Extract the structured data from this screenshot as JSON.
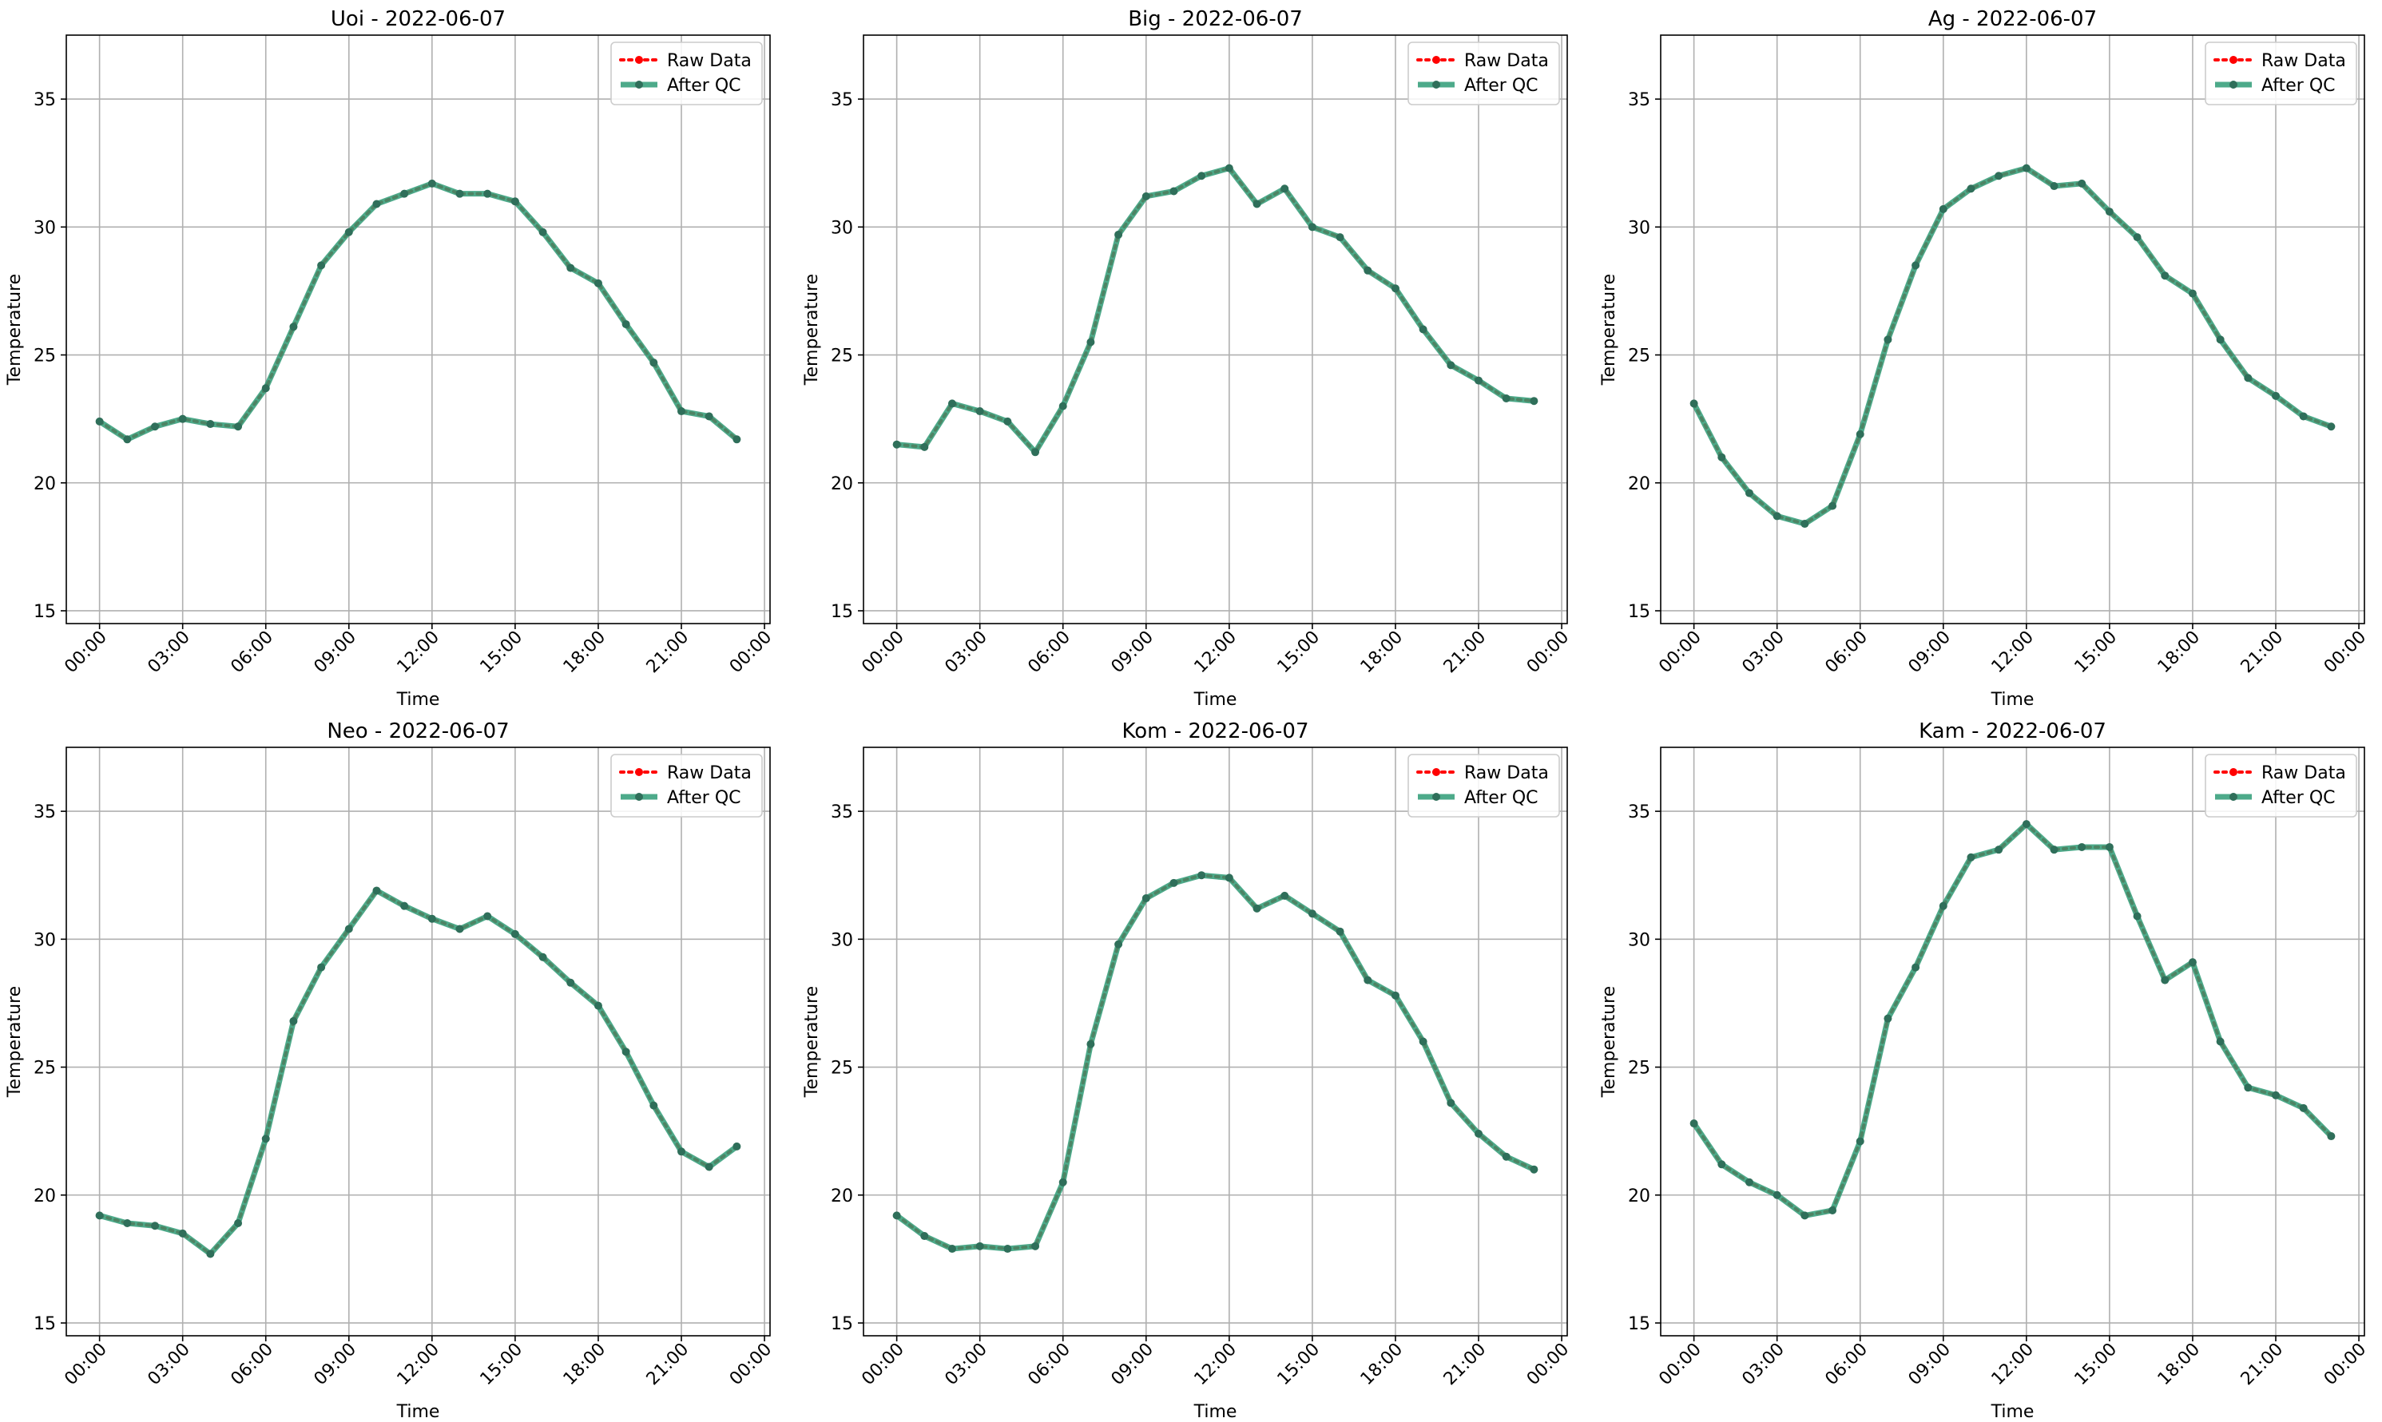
{
  "figure": {
    "x_ticks": [
      "00:00",
      "03:00",
      "06:00",
      "09:00",
      "12:00",
      "15:00",
      "18:00",
      "21:00",
      "00:00"
    ]
  },
  "colors": {
    "raw": "#ff0000",
    "qc": "#2e9b76",
    "qc_marker": "#2f6f5a",
    "grid": "#b0b0b0"
  },
  "chart_data": [
    {
      "type": "line",
      "title": "Uoi - 2022-06-07",
      "xlabel": "Time",
      "ylabel": "Temperature",
      "ylim": [
        14.5,
        37.5
      ],
      "y_ticks": [
        15,
        20,
        25,
        30,
        35
      ],
      "xlim_hours": [
        -1.2,
        24.2
      ],
      "grid": true,
      "legend_position": "upper right",
      "x": [
        "00:00",
        "01:00",
        "02:00",
        "03:00",
        "04:00",
        "05:00",
        "06:00",
        "07:00",
        "08:00",
        "09:00",
        "10:00",
        "11:00",
        "12:00",
        "13:00",
        "14:00",
        "15:00",
        "16:00",
        "17:00",
        "18:00",
        "19:00",
        "20:00",
        "21:00",
        "22:00",
        "23:00"
      ],
      "series": [
        {
          "name": "Raw Data",
          "values": [
            22.4,
            21.7,
            22.2,
            22.5,
            22.3,
            22.2,
            23.7,
            26.1,
            28.5,
            29.8,
            30.9,
            31.3,
            31.7,
            31.3,
            31.3,
            31.0,
            29.8,
            28.4,
            27.8,
            26.2,
            24.7,
            22.8,
            22.6,
            21.7
          ]
        },
        {
          "name": "After QC",
          "values": [
            22.4,
            21.7,
            22.2,
            22.5,
            22.3,
            22.2,
            23.7,
            26.1,
            28.5,
            29.8,
            30.9,
            31.3,
            31.7,
            31.3,
            31.3,
            31.0,
            29.8,
            28.4,
            27.8,
            26.2,
            24.7,
            22.8,
            22.6,
            21.7
          ]
        }
      ]
    },
    {
      "type": "line",
      "title": "Big - 2022-06-07",
      "xlabel": "Time",
      "ylabel": "Temperature",
      "ylim": [
        14.5,
        37.5
      ],
      "y_ticks": [
        15,
        20,
        25,
        30,
        35
      ],
      "xlim_hours": [
        -1.2,
        24.2
      ],
      "grid": true,
      "legend_position": "upper right",
      "x": [
        "00:00",
        "01:00",
        "02:00",
        "03:00",
        "04:00",
        "05:00",
        "06:00",
        "07:00",
        "08:00",
        "09:00",
        "10:00",
        "11:00",
        "12:00",
        "13:00",
        "14:00",
        "15:00",
        "16:00",
        "17:00",
        "18:00",
        "19:00",
        "20:00",
        "21:00",
        "22:00",
        "23:00"
      ],
      "series": [
        {
          "name": "Raw Data",
          "values": [
            21.5,
            21.4,
            23.1,
            22.8,
            22.4,
            21.2,
            23.0,
            25.5,
            29.7,
            31.2,
            31.4,
            32.0,
            32.3,
            30.9,
            31.5,
            30.0,
            29.6,
            28.3,
            27.6,
            26.0,
            24.6,
            24.0,
            23.3,
            23.2
          ]
        },
        {
          "name": "After QC",
          "values": [
            21.5,
            21.4,
            23.1,
            22.8,
            22.4,
            21.2,
            23.0,
            25.5,
            29.7,
            31.2,
            31.4,
            32.0,
            32.3,
            30.9,
            31.5,
            30.0,
            29.6,
            28.3,
            27.6,
            26.0,
            24.6,
            24.0,
            23.3,
            23.2
          ]
        }
      ]
    },
    {
      "type": "line",
      "title": "Ag - 2022-06-07",
      "xlabel": "Time",
      "ylabel": "Temperature",
      "ylim": [
        14.5,
        37.5
      ],
      "y_ticks": [
        15,
        20,
        25,
        30,
        35
      ],
      "xlim_hours": [
        -1.2,
        24.2
      ],
      "grid": true,
      "legend_position": "upper right",
      "x": [
        "00:00",
        "01:00",
        "02:00",
        "03:00",
        "04:00",
        "05:00",
        "06:00",
        "07:00",
        "08:00",
        "09:00",
        "10:00",
        "11:00",
        "12:00",
        "13:00",
        "14:00",
        "15:00",
        "16:00",
        "17:00",
        "18:00",
        "19:00",
        "20:00",
        "21:00",
        "22:00",
        "23:00"
      ],
      "series": [
        {
          "name": "Raw Data",
          "values": [
            23.1,
            21.0,
            19.6,
            18.7,
            18.4,
            19.1,
            21.9,
            25.6,
            28.5,
            30.7,
            31.5,
            32.0,
            32.3,
            31.6,
            31.7,
            30.6,
            29.6,
            28.1,
            27.4,
            25.6,
            24.1,
            23.4,
            22.6,
            22.2
          ]
        },
        {
          "name": "After QC",
          "values": [
            23.1,
            21.0,
            19.6,
            18.7,
            18.4,
            19.1,
            21.9,
            25.6,
            28.5,
            30.7,
            31.5,
            32.0,
            32.3,
            31.6,
            31.7,
            30.6,
            29.6,
            28.1,
            27.4,
            25.6,
            24.1,
            23.4,
            22.6,
            22.2
          ]
        }
      ]
    },
    {
      "type": "line",
      "title": "Neo - 2022-06-07",
      "xlabel": "Time",
      "ylabel": "Temperature",
      "ylim": [
        14.5,
        37.5
      ],
      "y_ticks": [
        15,
        20,
        25,
        30,
        35
      ],
      "xlim_hours": [
        -1.2,
        24.2
      ],
      "grid": true,
      "legend_position": "upper right",
      "x": [
        "00:00",
        "01:00",
        "02:00",
        "03:00",
        "04:00",
        "05:00",
        "06:00",
        "07:00",
        "08:00",
        "09:00",
        "10:00",
        "11:00",
        "12:00",
        "13:00",
        "14:00",
        "15:00",
        "16:00",
        "17:00",
        "18:00",
        "19:00",
        "20:00",
        "21:00",
        "22:00",
        "23:00"
      ],
      "series": [
        {
          "name": "Raw Data",
          "values": [
            19.2,
            18.9,
            18.8,
            18.5,
            17.7,
            18.9,
            22.2,
            26.8,
            28.9,
            30.4,
            31.9,
            31.3,
            30.8,
            30.4,
            30.9,
            30.2,
            29.3,
            28.3,
            27.4,
            25.6,
            23.5,
            21.7,
            21.1,
            21.9
          ]
        },
        {
          "name": "After QC",
          "values": [
            19.2,
            18.9,
            18.8,
            18.5,
            17.7,
            18.9,
            22.2,
            26.8,
            28.9,
            30.4,
            31.9,
            31.3,
            30.8,
            30.4,
            30.9,
            30.2,
            29.3,
            28.3,
            27.4,
            25.6,
            23.5,
            21.7,
            21.1,
            21.9
          ]
        }
      ]
    },
    {
      "type": "line",
      "title": "Kom - 2022-06-07",
      "xlabel": "Time",
      "ylabel": "Temperature",
      "ylim": [
        14.5,
        37.5
      ],
      "y_ticks": [
        15,
        20,
        25,
        30,
        35
      ],
      "xlim_hours": [
        -1.2,
        24.2
      ],
      "grid": true,
      "legend_position": "upper right",
      "x": [
        "00:00",
        "01:00",
        "02:00",
        "03:00",
        "04:00",
        "05:00",
        "06:00",
        "07:00",
        "08:00",
        "09:00",
        "10:00",
        "11:00",
        "12:00",
        "13:00",
        "14:00",
        "15:00",
        "16:00",
        "17:00",
        "18:00",
        "19:00",
        "20:00",
        "21:00",
        "22:00",
        "23:00"
      ],
      "series": [
        {
          "name": "Raw Data",
          "values": [
            19.2,
            18.4,
            17.9,
            18.0,
            17.9,
            18.0,
            20.5,
            25.9,
            29.8,
            31.6,
            32.2,
            32.5,
            32.4,
            31.2,
            31.7,
            31.0,
            30.3,
            28.4,
            27.8,
            26.0,
            23.6,
            22.4,
            21.5,
            21.0
          ]
        },
        {
          "name": "After QC",
          "values": [
            19.2,
            18.4,
            17.9,
            18.0,
            17.9,
            18.0,
            20.5,
            25.9,
            29.8,
            31.6,
            32.2,
            32.5,
            32.4,
            31.2,
            31.7,
            31.0,
            30.3,
            28.4,
            27.8,
            26.0,
            23.6,
            22.4,
            21.5,
            21.0
          ]
        }
      ]
    },
    {
      "type": "line",
      "title": "Kam - 2022-06-07",
      "xlabel": "Time",
      "ylabel": "Temperature",
      "ylim": [
        14.5,
        37.5
      ],
      "y_ticks": [
        15,
        20,
        25,
        30,
        35
      ],
      "xlim_hours": [
        -1.2,
        24.2
      ],
      "grid": true,
      "legend_position": "upper right",
      "x": [
        "00:00",
        "01:00",
        "02:00",
        "03:00",
        "04:00",
        "05:00",
        "06:00",
        "07:00",
        "08:00",
        "09:00",
        "10:00",
        "11:00",
        "12:00",
        "13:00",
        "14:00",
        "15:00",
        "16:00",
        "17:00",
        "18:00",
        "19:00",
        "20:00",
        "21:00",
        "22:00",
        "23:00"
      ],
      "series": [
        {
          "name": "Raw Data",
          "values": [
            22.8,
            21.2,
            20.5,
            20.0,
            19.2,
            19.4,
            22.1,
            26.9,
            28.9,
            31.3,
            33.2,
            33.5,
            34.5,
            33.5,
            33.6,
            33.6,
            30.9,
            28.4,
            29.1,
            26.0,
            24.2,
            23.9,
            23.4,
            22.3
          ]
        },
        {
          "name": "After QC",
          "values": [
            22.8,
            21.2,
            20.5,
            20.0,
            19.2,
            19.4,
            22.1,
            26.9,
            28.9,
            31.3,
            33.2,
            33.5,
            34.5,
            33.5,
            33.6,
            33.6,
            30.9,
            28.4,
            29.1,
            26.0,
            24.2,
            23.9,
            23.4,
            22.3
          ]
        }
      ]
    }
  ]
}
